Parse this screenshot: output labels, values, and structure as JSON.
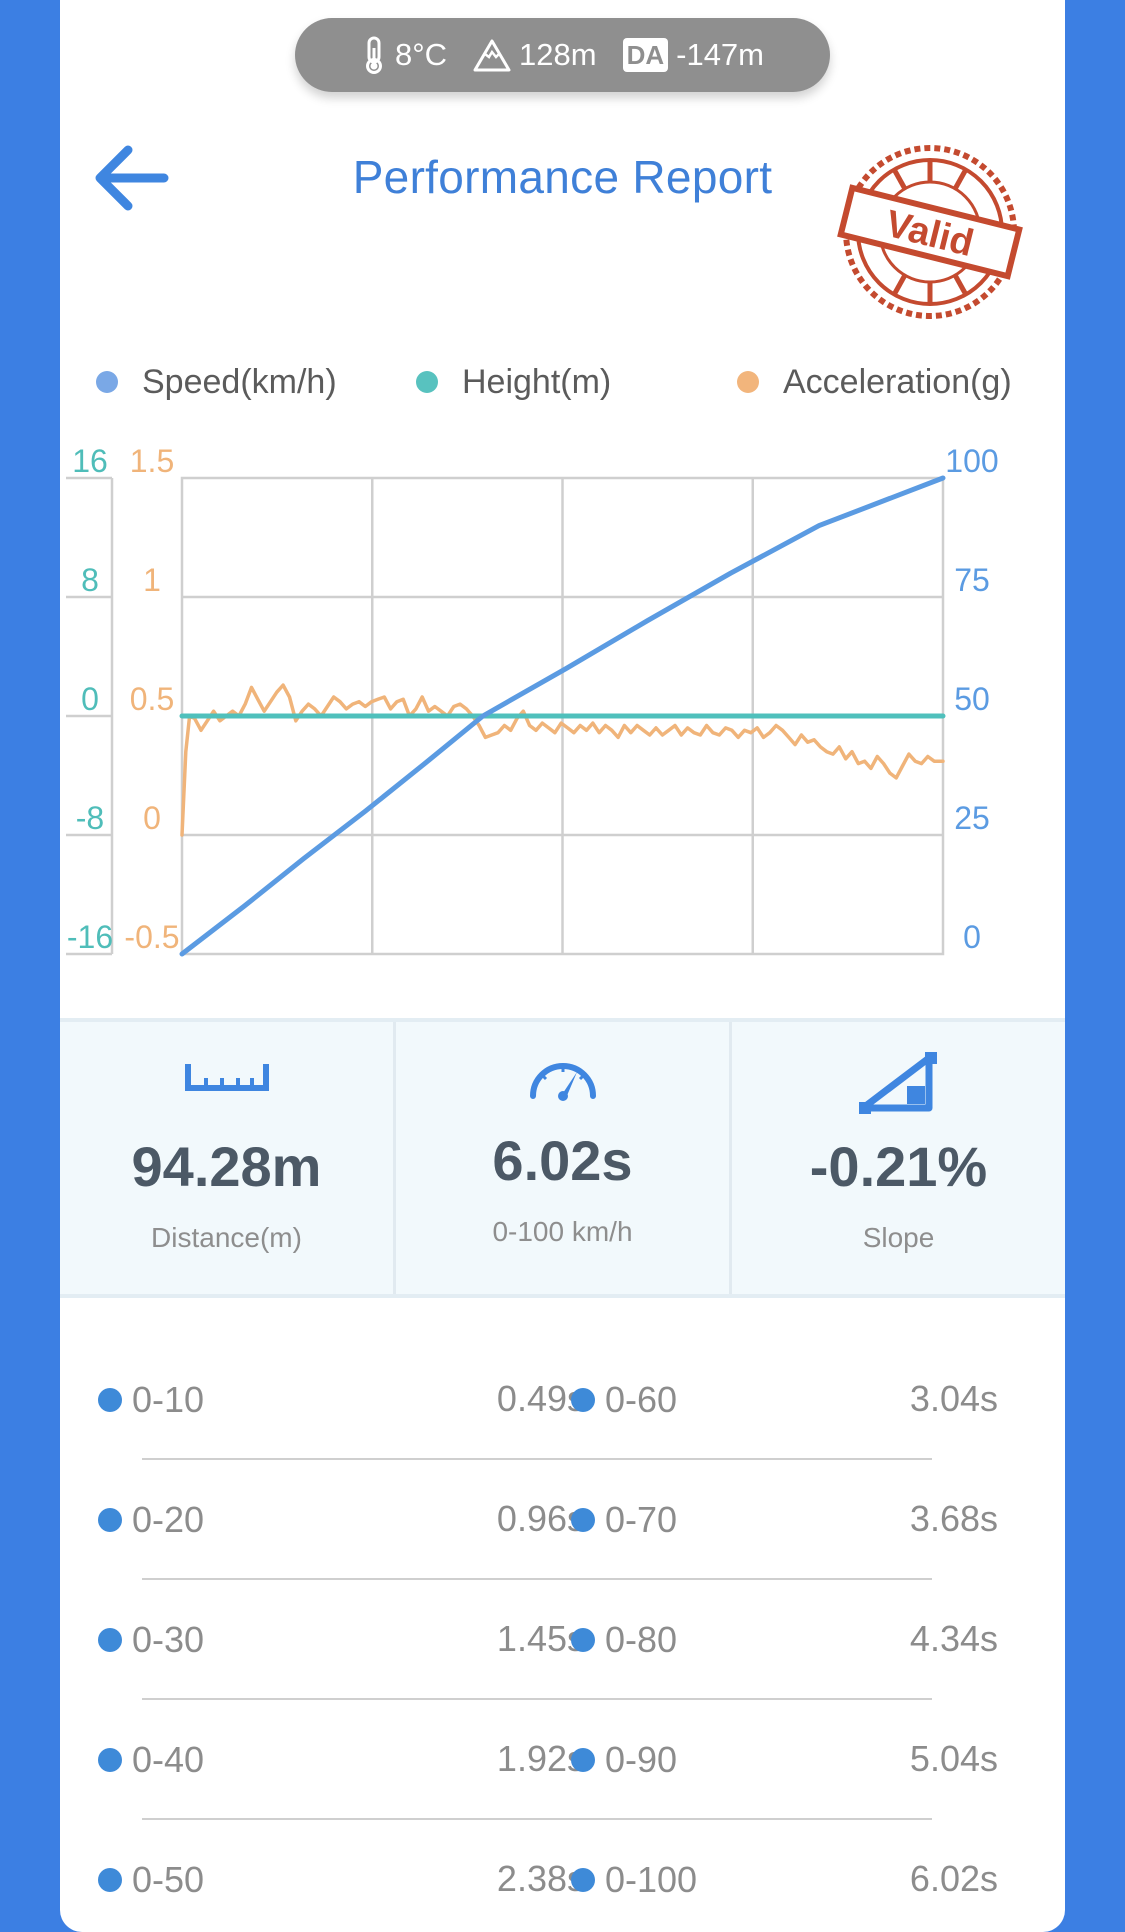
{
  "header": {
    "temperature": "8°C",
    "altitude": "128m",
    "density_altitude_badge": "DA",
    "density_altitude": "-147m",
    "title": "Performance Report",
    "stamp_text": "Valid"
  },
  "colors": {
    "speed": "#5b9be2",
    "height": "#4fc0bc",
    "acceleration": "#f0b47a",
    "accent": "#3f80d8",
    "stamp": "#c44a2f"
  },
  "legend": [
    {
      "name": "Speed(km/h)",
      "color": "#7aa8e6"
    },
    {
      "name": "Height(m)",
      "color": "#58c2bf"
    },
    {
      "name": "Acceleration(g)",
      "color": "#f2b57c"
    }
  ],
  "chart_data": {
    "type": "line",
    "x_gridlines": 4,
    "grid": true,
    "legend_position": "top",
    "axes": {
      "height_axis": {
        "side": "left-outer",
        "ticks": [
          "16",
          "8",
          "0",
          "-8",
          "-16"
        ],
        "range": [
          -16,
          16
        ]
      },
      "acceleration_axis": {
        "side": "left-inner",
        "ticks": [
          "1.5",
          "1",
          "0.5",
          "0",
          "-0.5"
        ],
        "range": [
          -0.5,
          1.5
        ]
      },
      "speed_axis": {
        "side": "right",
        "ticks": [
          "100",
          "75",
          "50",
          "25",
          "0"
        ],
        "range": [
          0,
          100
        ]
      }
    },
    "series": [
      {
        "name": "Speed(km/h)",
        "axis": "speed_axis",
        "t": [
          0,
          0.49,
          0.96,
          1.45,
          1.92,
          2.38,
          3.04,
          3.68,
          4.34,
          5.04,
          6.02
        ],
        "values": [
          0,
          10,
          20,
          30,
          40,
          50,
          60,
          70,
          80,
          90,
          100
        ]
      },
      {
        "name": "Height(m)",
        "axis": "height_axis",
        "t": [
          0,
          6.02
        ],
        "values": [
          0,
          0
        ]
      },
      {
        "name": "Acceleration(g)",
        "axis": "acceleration_axis",
        "t": [
          0.0,
          0.03,
          0.06,
          0.1,
          0.15,
          0.2,
          0.25,
          0.3,
          0.35,
          0.4,
          0.45,
          0.5,
          0.55,
          0.6,
          0.65,
          0.7,
          0.75,
          0.8,
          0.85,
          0.9,
          0.95,
          1.0,
          1.05,
          1.1,
          1.15,
          1.2,
          1.25,
          1.3,
          1.35,
          1.4,
          1.45,
          1.5,
          1.55,
          1.6,
          1.65,
          1.7,
          1.75,
          1.8,
          1.85,
          1.9,
          1.95,
          2.0,
          2.05,
          2.1,
          2.15,
          2.2,
          2.25,
          2.3,
          2.35,
          2.4,
          2.45,
          2.5,
          2.55,
          2.6,
          2.65,
          2.7,
          2.75,
          2.8,
          2.85,
          2.9,
          2.95,
          3.0,
          3.05,
          3.1,
          3.15,
          3.2,
          3.25,
          3.3,
          3.35,
          3.4,
          3.45,
          3.5,
          3.55,
          3.6,
          3.65,
          3.7,
          3.75,
          3.8,
          3.85,
          3.9,
          3.95,
          4.0,
          4.05,
          4.1,
          4.15,
          4.2,
          4.25,
          4.3,
          4.35,
          4.4,
          4.45,
          4.5,
          4.55,
          4.6,
          4.65,
          4.7,
          4.75,
          4.8,
          4.85,
          4.9,
          4.95,
          5.0,
          5.05,
          5.1,
          5.15,
          5.2,
          5.25,
          5.3,
          5.35,
          5.4,
          5.45,
          5.5,
          5.55,
          5.6,
          5.65,
          5.7,
          5.75,
          5.8,
          5.85,
          5.9,
          5.95,
          6.02
        ],
        "values": [
          0.0,
          0.35,
          0.5,
          0.49,
          0.44,
          0.48,
          0.52,
          0.48,
          0.5,
          0.52,
          0.5,
          0.55,
          0.62,
          0.57,
          0.52,
          0.56,
          0.6,
          0.63,
          0.58,
          0.48,
          0.52,
          0.55,
          0.53,
          0.5,
          0.54,
          0.58,
          0.56,
          0.53,
          0.55,
          0.56,
          0.54,
          0.56,
          0.57,
          0.58,
          0.53,
          0.56,
          0.57,
          0.5,
          0.53,
          0.58,
          0.52,
          0.54,
          0.52,
          0.5,
          0.54,
          0.55,
          0.53,
          0.5,
          0.46,
          0.41,
          0.42,
          0.43,
          0.46,
          0.44,
          0.49,
          0.52,
          0.46,
          0.44,
          0.47,
          0.45,
          0.43,
          0.47,
          0.45,
          0.43,
          0.46,
          0.44,
          0.47,
          0.43,
          0.46,
          0.44,
          0.41,
          0.46,
          0.43,
          0.46,
          0.44,
          0.42,
          0.45,
          0.42,
          0.44,
          0.46,
          0.42,
          0.45,
          0.43,
          0.42,
          0.46,
          0.43,
          0.42,
          0.45,
          0.44,
          0.41,
          0.44,
          0.43,
          0.45,
          0.41,
          0.43,
          0.46,
          0.44,
          0.41,
          0.38,
          0.42,
          0.39,
          0.4,
          0.37,
          0.35,
          0.34,
          0.37,
          0.32,
          0.35,
          0.3,
          0.31,
          0.28,
          0.33,
          0.3,
          0.26,
          0.24,
          0.29,
          0.34,
          0.31,
          0.3,
          0.33,
          0.31,
          0.31
        ]
      }
    ]
  },
  "stats": [
    {
      "icon": "ruler-icon",
      "value": "94.28m",
      "label": "Distance(m)"
    },
    {
      "icon": "speedometer-icon",
      "value": "6.02s",
      "label": "0-100 km/h"
    },
    {
      "icon": "slope-icon",
      "value": "-0.21%",
      "label": "Slope"
    }
  ],
  "splits": [
    {
      "left": {
        "label": "0-10",
        "time": "0.49s"
      },
      "right": {
        "label": "0-60",
        "time": "3.04s"
      }
    },
    {
      "left": {
        "label": "0-20",
        "time": "0.96s"
      },
      "right": {
        "label": "0-70",
        "time": "3.68s"
      }
    },
    {
      "left": {
        "label": "0-30",
        "time": "1.45s"
      },
      "right": {
        "label": "0-80",
        "time": "4.34s"
      }
    },
    {
      "left": {
        "label": "0-40",
        "time": "1.92s"
      },
      "right": {
        "label": "0-90",
        "time": "5.04s"
      }
    },
    {
      "left": {
        "label": "0-50",
        "time": "2.38s"
      },
      "right": {
        "label": "0-100",
        "time": "6.02s"
      }
    }
  ]
}
